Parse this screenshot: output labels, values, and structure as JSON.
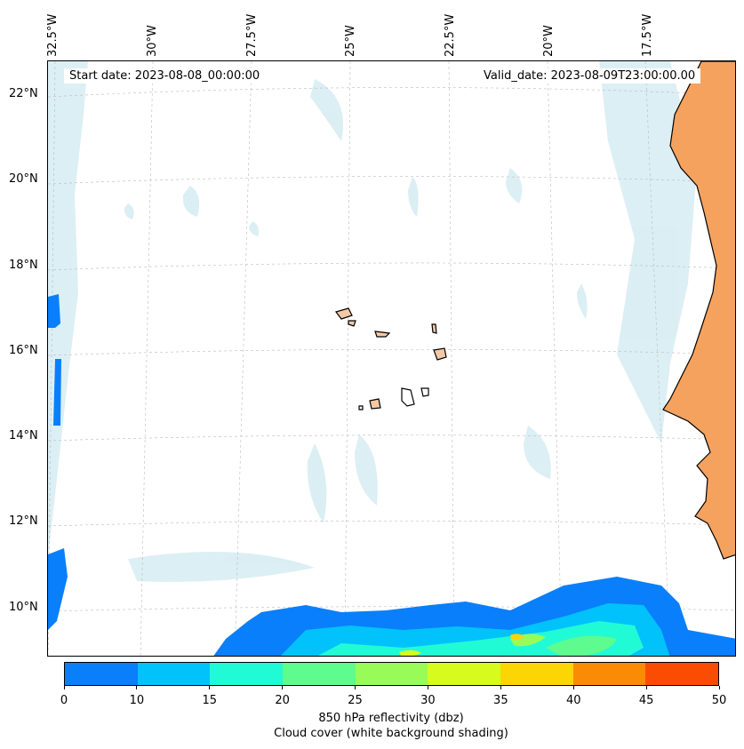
{
  "header": {
    "start_date": "Start date: 2023-08-08_00:00:00",
    "valid_date": "Valid_date: 2023-08-09T23:00:00.00"
  },
  "axes": {
    "longitude_labels": [
      "32.5°W",
      "30°W",
      "27.5°W",
      "25°W",
      "22.5°W",
      "20°W",
      "17.5°W"
    ],
    "latitude_labels": [
      "22°N",
      "20°N",
      "18°N",
      "16°N",
      "14°N",
      "12°N",
      "10°N"
    ]
  },
  "colorbar": {
    "ticks": [
      "0",
      "10",
      "15",
      "20",
      "25",
      "30",
      "35",
      "40",
      "45",
      "50"
    ],
    "colors": [
      "#0a7ffb",
      "#02c2fb",
      "#20fbd6",
      "#5efb8e",
      "#99fb58",
      "#d6fb1c",
      "#fbd504",
      "#fb8a04",
      "#fb4c04"
    ],
    "label": "850 hPa reflectivity (dbz)",
    "sublabel": "Cloud cover (white background shading)"
  },
  "colors": {
    "land": "#f5a25f",
    "cloud_shading": "#cde8f0",
    "grid": "#bbbbbb",
    "coast": "#000000"
  }
}
